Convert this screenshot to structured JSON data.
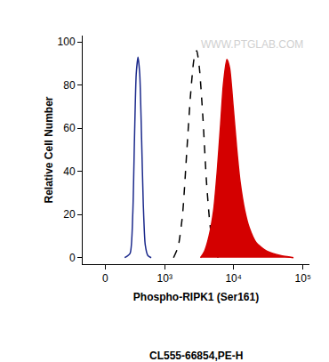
{
  "chart_data": {
    "type": "line",
    "x_label": "Phospho-RIPK1 (Ser161)",
    "subtitle": "CL555-66854,PE-H",
    "y_label": "Relative Cell Number",
    "annotations": [
      "WWW.PTGLAB.COM"
    ],
    "log": "x",
    "xlim": [
      -230,
      124000
    ],
    "xticks": [
      0,
      {
        "value": 1000,
        "label": "10³"
      },
      {
        "value": 10000,
        "label": "10⁴"
      },
      {
        "value": 100000,
        "label": "10⁵"
      }
    ],
    "ylim": [
      -3,
      103
    ],
    "yticks": [
      0,
      20,
      40,
      60,
      80,
      100
    ],
    "grid": false,
    "series": [
      {
        "color": "#1c2a8c",
        "line_style": "solid",
        "x": [
          196,
          261,
          296,
          320,
          345,
          372,
          400,
          431,
          460,
          496,
          547,
          620
        ],
        "values": [
          0,
          2,
          20,
          55,
          85,
          93,
          85,
          55,
          25,
          6,
          1,
          0
        ]
      },
      {
        "color": "#000000",
        "line_style": "dash",
        "x": [
          1350,
          1575,
          1830,
          2115,
          2385,
          2680,
          2940,
          3210,
          3610,
          4070,
          4580,
          5160,
          6000
        ],
        "values": [
          0,
          5,
          20,
          50,
          75,
          92,
          96,
          88,
          65,
          35,
          15,
          4,
          0
        ]
      },
      {
        "color": "#d40000",
        "line_style": "solid",
        "type": "area",
        "x": [
          3330,
          3810,
          4430,
          5160,
          5810,
          6510,
          7110,
          8000,
          8770,
          9870,
          11140,
          12440,
          14470,
          16780,
          21150,
          30200,
          47100,
          73000
        ],
        "values": [
          0,
          3,
          10,
          22,
          40,
          62,
          80,
          92,
          88,
          70,
          50,
          35,
          22,
          14,
          7,
          3,
          1,
          0
        ]
      }
    ]
  }
}
